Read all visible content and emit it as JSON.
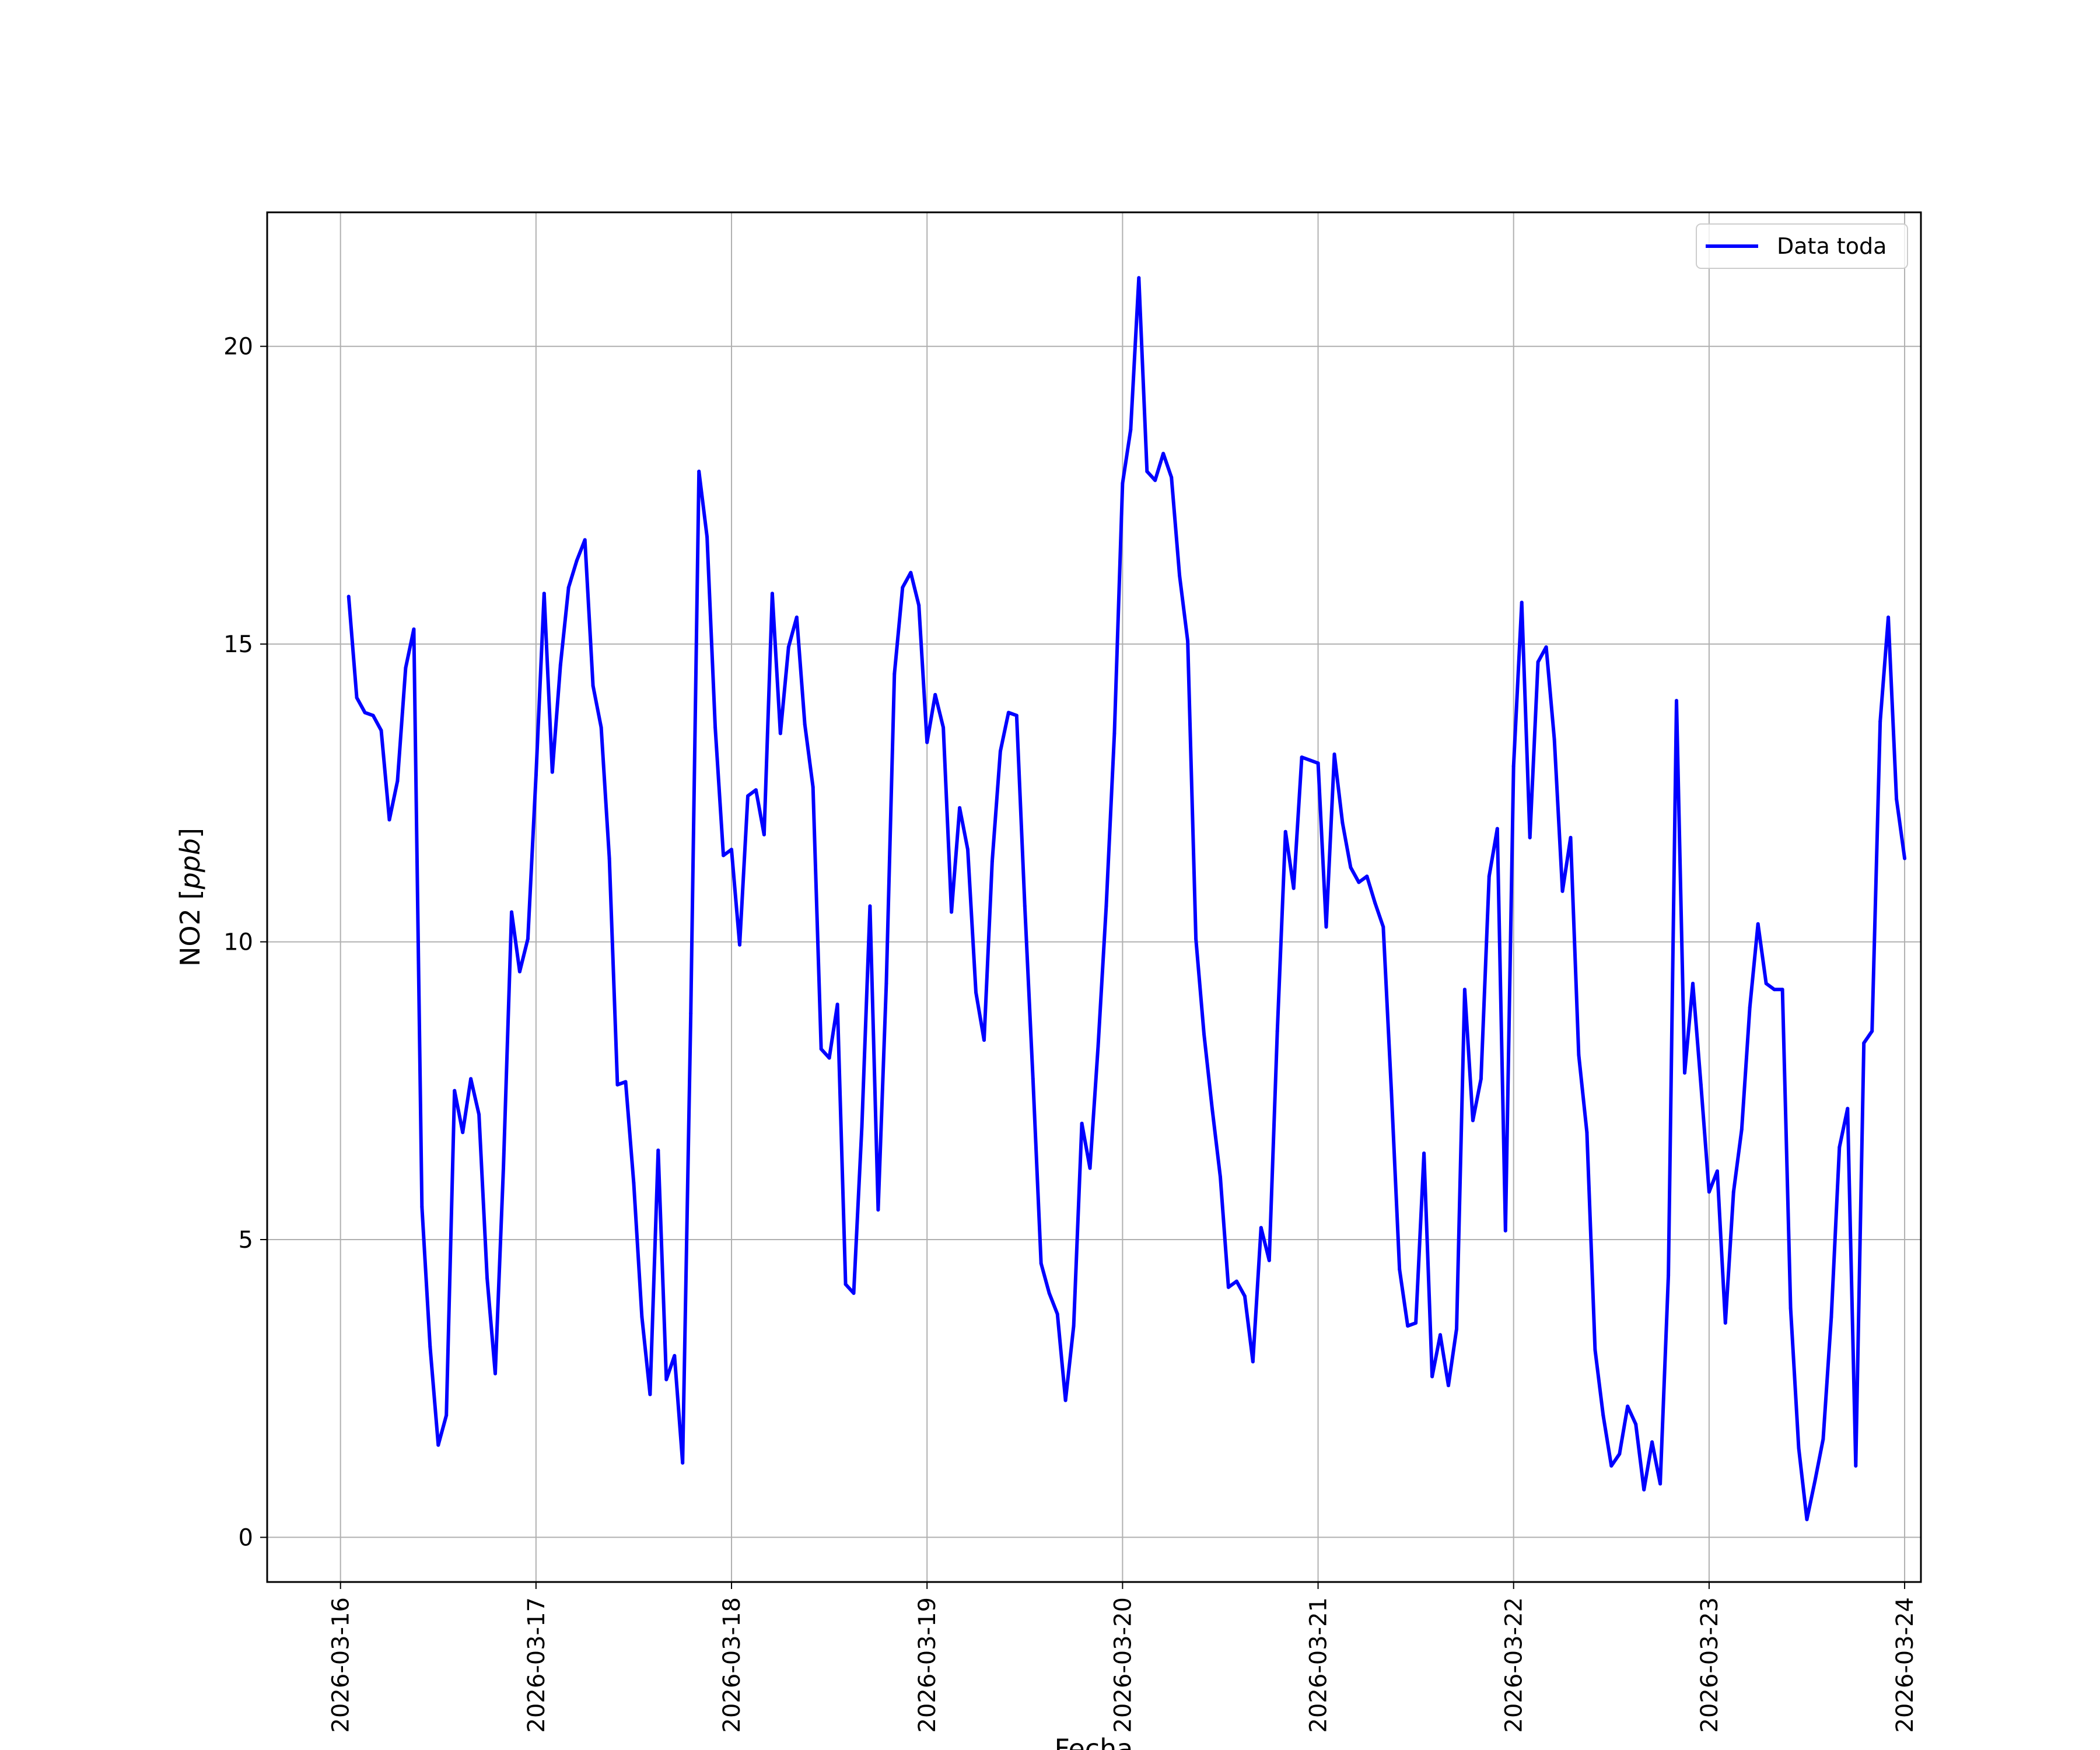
{
  "chart_data": {
    "type": "line",
    "xlabel": "Fecha",
    "ylabel": "NO2 [ppb]",
    "ylabel_main": "NO2 ",
    "ylabel_unit": "ppb",
    "legend_position": "top-right",
    "grid": true,
    "xlim": [
      "2026-03-15T15:00",
      "2026-03-24T02:00"
    ],
    "ylim": [
      -0.75,
      22.25
    ],
    "y_ticks": [
      0,
      5,
      10,
      15,
      20
    ],
    "x_ticks": [
      "2026-03-16",
      "2026-03-17",
      "2026-03-18",
      "2026-03-19",
      "2026-03-20",
      "2026-03-21",
      "2026-03-22",
      "2026-03-23",
      "2026-03-24"
    ],
    "series": [
      {
        "name": "Data toda",
        "color": "#0000ff",
        "points": [
          [
            "2026-03-16T01:00",
            15.8
          ],
          [
            "2026-03-16T02:00",
            14.1
          ],
          [
            "2026-03-16T03:00",
            13.85
          ],
          [
            "2026-03-16T04:00",
            13.8
          ],
          [
            "2026-03-16T05:00",
            13.55
          ],
          [
            "2026-03-16T06:00",
            12.05
          ],
          [
            "2026-03-16T07:00",
            12.7
          ],
          [
            "2026-03-16T08:00",
            14.6
          ],
          [
            "2026-03-16T09:00",
            15.25
          ],
          [
            "2026-03-16T10:00",
            5.55
          ],
          [
            "2026-03-16T11:00",
            3.2
          ],
          [
            "2026-03-16T12:00",
            1.55
          ],
          [
            "2026-03-16T13:00",
            2.05
          ],
          [
            "2026-03-16T14:00",
            7.5
          ],
          [
            "2026-03-16T15:00",
            6.8
          ],
          [
            "2026-03-16T16:00",
            7.7
          ],
          [
            "2026-03-16T17:00",
            7.1
          ],
          [
            "2026-03-16T18:00",
            4.35
          ],
          [
            "2026-03-16T19:00",
            2.75
          ],
          [
            "2026-03-16T20:00",
            6.2
          ],
          [
            "2026-03-16T21:00",
            10.5
          ],
          [
            "2026-03-16T22:00",
            9.5
          ],
          [
            "2026-03-16T23:00",
            10.05
          ],
          [
            "2026-03-17T00:00",
            12.8
          ],
          [
            "2026-03-17T01:00",
            15.85
          ],
          [
            "2026-03-17T02:00",
            12.85
          ],
          [
            "2026-03-17T03:00",
            14.65
          ],
          [
            "2026-03-17T04:00",
            15.95
          ],
          [
            "2026-03-17T05:00",
            16.4
          ],
          [
            "2026-03-17T06:00",
            16.75
          ],
          [
            "2026-03-17T07:00",
            14.3
          ],
          [
            "2026-03-17T08:00",
            13.6
          ],
          [
            "2026-03-17T09:00",
            11.4
          ],
          [
            "2026-03-17T10:00",
            7.6
          ],
          [
            "2026-03-17T11:00",
            7.65
          ],
          [
            "2026-03-17T12:00",
            5.95
          ],
          [
            "2026-03-17T13:00",
            3.7
          ],
          [
            "2026-03-17T14:00",
            2.4
          ],
          [
            "2026-03-17T15:00",
            6.5
          ],
          [
            "2026-03-17T16:00",
            2.65
          ],
          [
            "2026-03-17T17:00",
            3.05
          ],
          [
            "2026-03-17T18:00",
            1.25
          ],
          [
            "2026-03-17T19:00",
            8.8
          ],
          [
            "2026-03-17T20:00",
            17.9
          ],
          [
            "2026-03-17T21:00",
            16.8
          ],
          [
            "2026-03-17T22:00",
            13.6
          ],
          [
            "2026-03-17T23:00",
            11.45
          ],
          [
            "2026-03-18T00:00",
            11.55
          ],
          [
            "2026-03-18T01:00",
            9.95
          ],
          [
            "2026-03-18T02:00",
            12.45
          ],
          [
            "2026-03-18T03:00",
            12.55
          ],
          [
            "2026-03-18T04:00",
            11.8
          ],
          [
            "2026-03-18T05:00",
            15.85
          ],
          [
            "2026-03-18T06:00",
            13.5
          ],
          [
            "2026-03-18T07:00",
            14.95
          ],
          [
            "2026-03-18T08:00",
            15.45
          ],
          [
            "2026-03-18T09:00",
            13.65
          ],
          [
            "2026-03-18T10:00",
            12.6
          ],
          [
            "2026-03-18T11:00",
            8.2
          ],
          [
            "2026-03-18T12:00",
            8.05
          ],
          [
            "2026-03-18T13:00",
            8.95
          ],
          [
            "2026-03-18T14:00",
            4.25
          ],
          [
            "2026-03-18T15:00",
            4.1
          ],
          [
            "2026-03-18T16:00",
            6.9
          ],
          [
            "2026-03-18T17:00",
            10.6
          ],
          [
            "2026-03-18T18:00",
            5.5
          ],
          [
            "2026-03-18T19:00",
            9.3
          ],
          [
            "2026-03-18T20:00",
            14.5
          ],
          [
            "2026-03-18T21:00",
            15.95
          ],
          [
            "2026-03-18T22:00",
            16.2
          ],
          [
            "2026-03-18T23:00",
            15.65
          ],
          [
            "2026-03-19T00:00",
            13.35
          ],
          [
            "2026-03-19T01:00",
            14.15
          ],
          [
            "2026-03-19T02:00",
            13.6
          ],
          [
            "2026-03-19T03:00",
            10.5
          ],
          [
            "2026-03-19T04:00",
            12.25
          ],
          [
            "2026-03-19T05:00",
            11.55
          ],
          [
            "2026-03-19T06:00",
            9.15
          ],
          [
            "2026-03-19T07:00",
            8.35
          ],
          [
            "2026-03-19T08:00",
            11.35
          ],
          [
            "2026-03-19T09:00",
            13.2
          ],
          [
            "2026-03-19T10:00",
            13.85
          ],
          [
            "2026-03-19T11:00",
            13.8
          ],
          [
            "2026-03-19T12:00",
            10.6
          ],
          [
            "2026-03-19T13:00",
            7.7
          ],
          [
            "2026-03-19T14:00",
            4.6
          ],
          [
            "2026-03-19T15:00",
            4.1
          ],
          [
            "2026-03-19T16:00",
            3.75
          ],
          [
            "2026-03-19T17:00",
            2.3
          ],
          [
            "2026-03-19T18:00",
            3.55
          ],
          [
            "2026-03-19T19:00",
            6.95
          ],
          [
            "2026-03-19T20:00",
            6.2
          ],
          [
            "2026-03-19T21:00",
            8.25
          ],
          [
            "2026-03-19T22:00",
            10.6
          ],
          [
            "2026-03-19T23:00",
            13.5
          ],
          [
            "2026-03-20T00:00",
            17.7
          ],
          [
            "2026-03-20T01:00",
            18.6
          ],
          [
            "2026-03-20T02:00",
            21.15
          ],
          [
            "2026-03-20T03:00",
            17.9
          ],
          [
            "2026-03-20T04:00",
            17.75
          ],
          [
            "2026-03-20T05:00",
            18.2
          ],
          [
            "2026-03-20T06:00",
            17.8
          ],
          [
            "2026-03-20T07:00",
            16.15
          ],
          [
            "2026-03-20T08:00",
            15.05
          ],
          [
            "2026-03-20T09:00",
            10.05
          ],
          [
            "2026-03-20T10:00",
            8.45
          ],
          [
            "2026-03-20T11:00",
            7.2
          ],
          [
            "2026-03-20T12:00",
            6.05
          ],
          [
            "2026-03-20T13:00",
            4.2
          ],
          [
            "2026-03-20T14:00",
            4.3
          ],
          [
            "2026-03-20T15:00",
            4.05
          ],
          [
            "2026-03-20T16:00",
            2.95
          ],
          [
            "2026-03-20T17:00",
            5.2
          ],
          [
            "2026-03-20T18:00",
            4.65
          ],
          [
            "2026-03-20T19:00",
            8.5
          ],
          [
            "2026-03-20T20:00",
            11.85
          ],
          [
            "2026-03-20T21:00",
            10.9
          ],
          [
            "2026-03-20T22:00",
            13.1
          ],
          [
            "2026-03-20T23:00",
            13.05
          ],
          [
            "2026-03-21T00:00",
            13.0
          ],
          [
            "2026-03-21T01:00",
            10.25
          ],
          [
            "2026-03-21T02:00",
            13.15
          ],
          [
            "2026-03-21T03:00",
            12.0
          ],
          [
            "2026-03-21T04:00",
            11.25
          ],
          [
            "2026-03-21T05:00",
            11.0
          ],
          [
            "2026-03-21T06:00",
            11.1
          ],
          [
            "2026-03-21T07:00",
            10.65
          ],
          [
            "2026-03-21T08:00",
            10.25
          ],
          [
            "2026-03-21T09:00",
            7.5
          ],
          [
            "2026-03-21T10:00",
            4.5
          ],
          [
            "2026-03-21T11:00",
            3.55
          ],
          [
            "2026-03-21T12:00",
            3.6
          ],
          [
            "2026-03-21T13:00",
            6.45
          ],
          [
            "2026-03-21T14:00",
            2.7
          ],
          [
            "2026-03-21T15:00",
            3.4
          ],
          [
            "2026-03-21T16:00",
            2.55
          ],
          [
            "2026-03-21T17:00",
            3.5
          ],
          [
            "2026-03-21T18:00",
            9.2
          ],
          [
            "2026-03-21T19:00",
            7.0
          ],
          [
            "2026-03-21T20:00",
            7.7
          ],
          [
            "2026-03-21T21:00",
            11.1
          ],
          [
            "2026-03-21T22:00",
            11.9
          ],
          [
            "2026-03-21T23:00",
            5.15
          ],
          [
            "2026-03-22T00:00",
            12.95
          ],
          [
            "2026-03-22T01:00",
            15.7
          ],
          [
            "2026-03-22T02:00",
            11.75
          ],
          [
            "2026-03-22T03:00",
            14.7
          ],
          [
            "2026-03-22T04:00",
            14.95
          ],
          [
            "2026-03-22T05:00",
            13.4
          ],
          [
            "2026-03-22T06:00",
            10.85
          ],
          [
            "2026-03-22T07:00",
            11.75
          ],
          [
            "2026-03-22T08:00",
            8.1
          ],
          [
            "2026-03-22T09:00",
            6.8
          ],
          [
            "2026-03-22T10:00",
            3.15
          ],
          [
            "2026-03-22T11:00",
            2.05
          ],
          [
            "2026-03-22T12:00",
            1.2
          ],
          [
            "2026-03-22T13:00",
            1.4
          ],
          [
            "2026-03-22T14:00",
            2.2
          ],
          [
            "2026-03-22T15:00",
            1.9
          ],
          [
            "2026-03-22T16:00",
            0.8
          ],
          [
            "2026-03-22T17:00",
            1.6
          ],
          [
            "2026-03-22T18:00",
            0.9
          ],
          [
            "2026-03-22T19:00",
            4.4
          ],
          [
            "2026-03-22T20:00",
            14.05
          ],
          [
            "2026-03-22T21:00",
            7.8
          ],
          [
            "2026-03-22T22:00",
            9.3
          ],
          [
            "2026-03-22T23:00",
            7.6
          ],
          [
            "2026-03-23T00:00",
            5.8
          ],
          [
            "2026-03-23T01:00",
            6.15
          ],
          [
            "2026-03-23T02:00",
            3.6
          ],
          [
            "2026-03-23T03:00",
            5.8
          ],
          [
            "2026-03-23T04:00",
            6.85
          ],
          [
            "2026-03-23T05:00",
            8.9
          ],
          [
            "2026-03-23T06:00",
            10.3
          ],
          [
            "2026-03-23T07:00",
            9.3
          ],
          [
            "2026-03-23T08:00",
            9.2
          ],
          [
            "2026-03-23T09:00",
            9.2
          ],
          [
            "2026-03-23T10:00",
            3.85
          ],
          [
            "2026-03-23T11:00",
            1.5
          ],
          [
            "2026-03-23T12:00",
            0.3
          ],
          [
            "2026-03-23T13:00",
            0.95
          ],
          [
            "2026-03-23T14:00",
            1.65
          ],
          [
            "2026-03-23T15:00",
            3.7
          ],
          [
            "2026-03-23T16:00",
            6.55
          ],
          [
            "2026-03-23T17:00",
            7.2
          ],
          [
            "2026-03-23T18:00",
            1.2
          ],
          [
            "2026-03-23T19:00",
            8.3
          ],
          [
            "2026-03-23T20:00",
            8.5
          ],
          [
            "2026-03-23T21:00",
            13.7
          ],
          [
            "2026-03-23T22:00",
            15.45
          ],
          [
            "2026-03-23T23:00",
            12.4
          ],
          [
            "2026-03-24T00:00",
            11.4
          ]
        ]
      }
    ]
  }
}
